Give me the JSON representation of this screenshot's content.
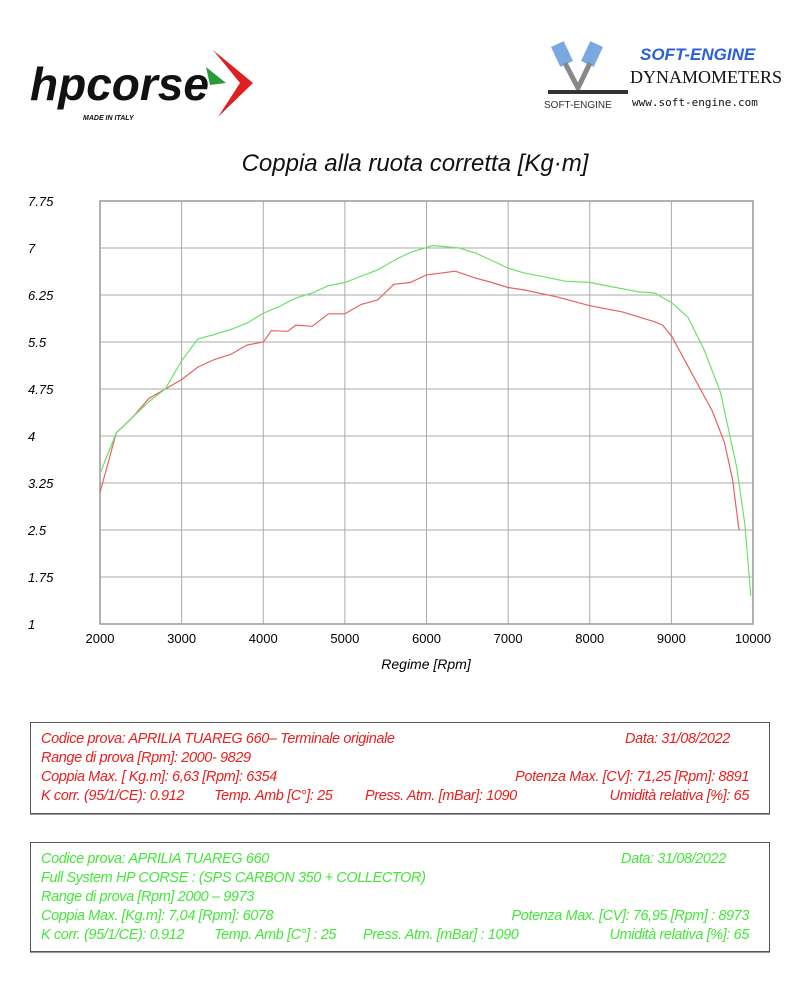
{
  "logos": {
    "left": {
      "text": "hpcorse",
      "subtext": "MADE IN ITALY"
    },
    "right": {
      "text": "SOFT-ENGINE",
      "subtext": "DYNAMOMETERS",
      "url_text": "www.soft-engine.com",
      "badge": "SOFT-ENGINE"
    }
  },
  "chart_data": {
    "type": "line",
    "title": "Coppia alla ruota corretta [Kg·m]",
    "xlabel": "Regime [Rpm]",
    "ylabel": "",
    "xlim": [
      2000,
      10000
    ],
    "ylim": [
      1,
      7.75
    ],
    "xticks": [
      "2000",
      "3000",
      "4000",
      "5000",
      "6000",
      "7000",
      "8000",
      "9000",
      "10000"
    ],
    "yticks": [
      "7.75",
      "7",
      "6.25",
      "5.5",
      "4.75",
      "4",
      "3.25",
      "2.5",
      "1.75",
      "1"
    ],
    "grid": true,
    "series": [
      {
        "color": "#e86060",
        "x": [
          2000,
          2200,
          2400,
          2600,
          2800,
          3000,
          3200,
          3400,
          3600,
          3800,
          4000,
          4100,
          4300,
          4400,
          4600,
          4800,
          5000,
          5200,
          5400,
          5600,
          5800,
          6000,
          6354,
          6600,
          6800,
          7000,
          7200,
          7600,
          8000,
          8400,
          8800,
          8891,
          9000,
          9250,
          9500,
          9650,
          9750,
          9829
        ],
        "y": [
          3.1,
          4.05,
          4.3,
          4.6,
          4.75,
          4.9,
          5.1,
          5.22,
          5.3,
          5.45,
          5.5,
          5.68,
          5.67,
          5.77,
          5.75,
          5.95,
          5.95,
          6.1,
          6.17,
          6.42,
          6.45,
          6.57,
          6.63,
          6.52,
          6.45,
          6.37,
          6.33,
          6.22,
          6.08,
          5.98,
          5.82,
          5.77,
          5.6,
          5.0,
          4.4,
          3.9,
          3.3,
          2.5
        ]
      },
      {
        "color": "#6ee06a",
        "x": [
          2000,
          2200,
          2400,
          2600,
          2800,
          3000,
          3200,
          3400,
          3600,
          3800,
          4000,
          4200,
          4400,
          4600,
          4800,
          5000,
          5200,
          5400,
          5600,
          5800,
          6078,
          6400,
          6600,
          6800,
          7000,
          7200,
          7400,
          7700,
          8000,
          8200,
          8600,
          8800,
          9000,
          9200,
          9400,
          9600,
          9800,
          9900,
          9973
        ],
        "y": [
          3.4,
          4.05,
          4.3,
          4.55,
          4.75,
          5.2,
          5.55,
          5.62,
          5.7,
          5.8,
          5.96,
          6.07,
          6.2,
          6.28,
          6.4,
          6.45,
          6.55,
          6.65,
          6.8,
          6.93,
          7.04,
          7.0,
          6.92,
          6.8,
          6.68,
          6.6,
          6.55,
          6.47,
          6.45,
          6.4,
          6.3,
          6.28,
          6.13,
          5.9,
          5.38,
          4.7,
          3.5,
          2.6,
          1.45
        ]
      }
    ]
  },
  "info_red": {
    "codice": "Codice prova: APRILIA TUAREG 660– Terminale originale",
    "data": "Data: 31/08/2022",
    "range": "Range di prova [Rpm]: 2000- 9829",
    "coppia": "Coppia Max. [ Kg.m]:  6,63 [Rpm]: 6354",
    "potenza": "Potenza Max. [CV]:  71,25 [Rpm]: 8891",
    "kcorr": "K corr. (95/1/CE): 0.912",
    "temp": "Temp. Amb [C°]: 25",
    "press": "Press. Atm. [mBar]: 1090",
    "umidita": "Umidità relativa [%]: 65"
  },
  "info_green": {
    "codice": "Codice prova: APRILIA TUAREG 660",
    "data": "Data: 31/08/2022",
    "system": "Full System HP CORSE :  (SPS CARBON 350 +  COLLECTOR)",
    "range": "Range di prova [Rpm] 2000 – 9973",
    "coppia": "Coppia Max.  [Kg.m]:  7,04  [Rpm]: 6078",
    "potenza": "Potenza Max. [CV]:  76,95  [Rpm] : 8973",
    "kcorr": "K corr. (95/1/CE): 0.912",
    "temp": "Temp. Amb [C°] : 25",
    "press": "Press. Atm. [mBar] : 1090",
    "umidita": "Umidità relativa [%]: 65"
  }
}
